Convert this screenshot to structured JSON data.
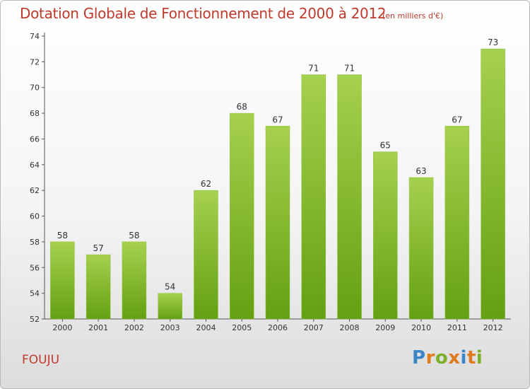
{
  "title": "Dotation Globale de Fonctionnement de 2000 à 2012",
  "subtitle": "(en milliers d'€)",
  "commune": "FOUJU",
  "logo": {
    "letters": [
      "P",
      "r",
      "o",
      "x",
      "i",
      "t",
      "i"
    ],
    "colors": [
      "#3a86c8",
      "#e07a1f",
      "#7db02a",
      "#e07a1f",
      "#3a86c8",
      "#e07a1f",
      "#7db02a"
    ]
  },
  "colors": {
    "accent": "#c0392b",
    "bar_top": "#a6d14e",
    "bar_bottom": "#64a012"
  },
  "chart_data": {
    "type": "bar",
    "categories": [
      "2000",
      "2001",
      "2002",
      "2003",
      "2004",
      "2005",
      "2006",
      "2007",
      "2008",
      "2009",
      "2010",
      "2011",
      "2012"
    ],
    "values": [
      58,
      57,
      58,
      54,
      62,
      68,
      67,
      71,
      71,
      65,
      63,
      67,
      73
    ],
    "title": "Dotation Globale de Fonctionnement de 2000 à 2012",
    "subtitle": "(en milliers d'€)",
    "ylim": [
      52,
      74
    ],
    "yticks": [
      52,
      54,
      56,
      58,
      60,
      62,
      64,
      66,
      68,
      70,
      72,
      74
    ],
    "grid": false,
    "data_labels": true
  }
}
